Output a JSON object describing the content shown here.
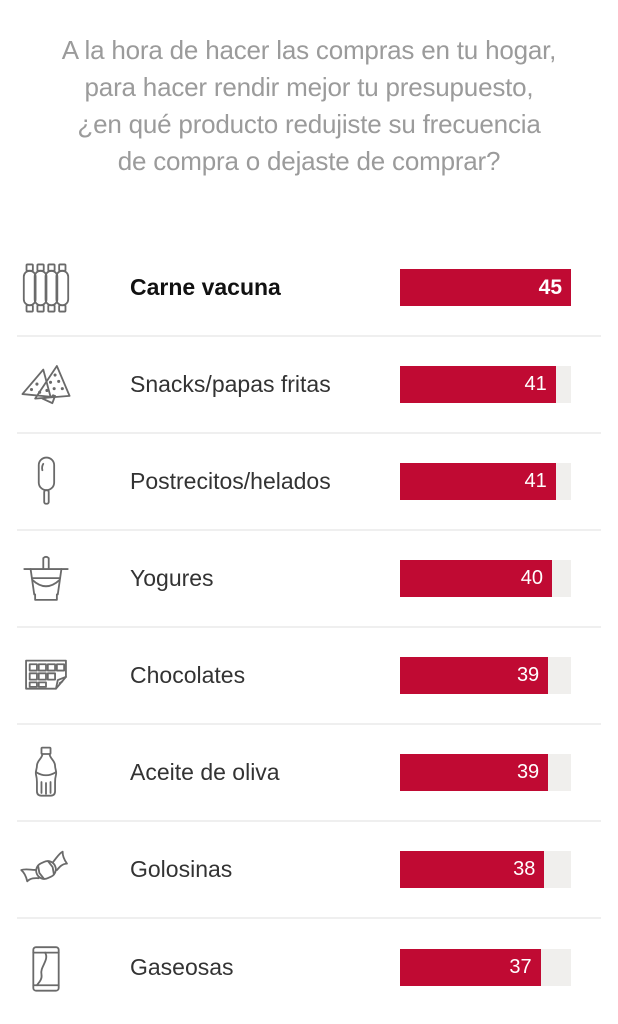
{
  "header": {
    "lines": [
      "A la hora de hacer las compras en tu hogar,",
      "para hacer rendir mejor tu presupuesto,",
      "¿en qué producto redujiste su frecuencia",
      "de compra o dejaste de comprar?"
    ]
  },
  "chart_data": {
    "type": "bar",
    "orientation": "horizontal",
    "title": "A la hora de hacer las compras en tu hogar, para hacer rendir mejor tu presupuesto, ¿en qué producto redujiste su frecuencia de compra o dejaste de comprar?",
    "categories": [
      "Carne vacuna",
      "Snacks/papas fritas",
      "Postrecitos/helados",
      "Yogures",
      "Chocolates",
      "Aceite de oliva",
      "Golosinas",
      "Gaseosas"
    ],
    "values": [
      45,
      41,
      41,
      40,
      39,
      39,
      38,
      37
    ],
    "max_value": 45,
    "value_labels_inside_bars": true,
    "grid": false,
    "legend": false,
    "items": [
      {
        "label": "Carne vacuna",
        "value": 45,
        "icon": "ribs-icon",
        "highlight": true
      },
      {
        "label": "Snacks/papas fritas",
        "value": 41,
        "icon": "tortilla-chips-icon",
        "highlight": false
      },
      {
        "label": "Postrecitos/helados",
        "value": 41,
        "icon": "popsicle-icon",
        "highlight": false
      },
      {
        "label": "Yogures",
        "value": 40,
        "icon": "yogurt-cup-icon",
        "highlight": false
      },
      {
        "label": "Chocolates",
        "value": 39,
        "icon": "chocolate-bar-icon",
        "highlight": false
      },
      {
        "label": "Aceite de oliva",
        "value": 39,
        "icon": "bottle-icon",
        "highlight": false
      },
      {
        "label": "Golosinas",
        "value": 38,
        "icon": "candy-icon",
        "highlight": false
      },
      {
        "label": "Gaseosas",
        "value": 37,
        "icon": "soda-can-icon",
        "highlight": false
      }
    ]
  },
  "colors": {
    "bar_color": "#c00a33",
    "track_color": "#f0efed",
    "value_text_color": "#ffffff",
    "title_color": "#9b9b9b",
    "label_color": "#333333",
    "highlight_label_color": "#111111",
    "separator_color": "#efefef",
    "icon_color": "#6a6a6a"
  }
}
